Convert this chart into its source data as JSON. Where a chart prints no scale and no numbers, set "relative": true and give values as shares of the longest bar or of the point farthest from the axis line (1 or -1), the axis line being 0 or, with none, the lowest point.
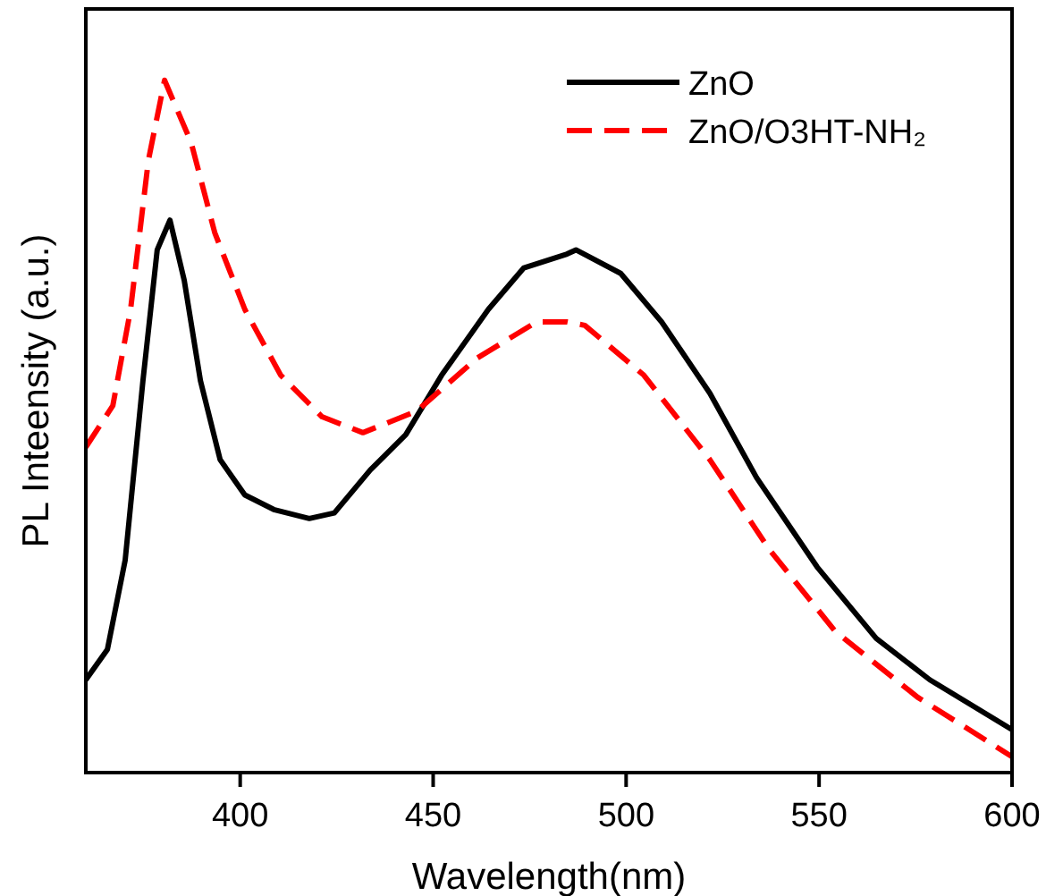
{
  "chart_data": {
    "type": "line",
    "xlabel": "Wavelength(nm)",
    "ylabel": "PL Inteensity (a.u.)",
    "relative": true,
    "xlim": [
      360,
      600
    ],
    "xticks": [
      400,
      450,
      500,
      550,
      600
    ],
    "legend": "top right",
    "marker": "none",
    "series": [
      {
        "name": "ZnO",
        "color": "#000000",
        "line_style": "solid",
        "x": [
          360,
          365.6,
          370.2,
          374.8,
          378.5,
          381.8,
          385.5,
          389.7,
          394.8,
          401.2,
          408.7,
          417.9,
          424.4,
          433.7,
          442.9,
          452.2,
          464.3,
          473.5,
          484.7,
          487,
          498.6,
          509.2,
          521.7,
          533.8,
          549.5,
          564.8,
          578.7,
          600
        ],
        "values": [
          0.134,
          0.178,
          0.307,
          0.566,
          0.755,
          0.798,
          0.711,
          0.566,
          0.452,
          0.401,
          0.38,
          0.367,
          0.375,
          0.437,
          0.488,
          0.574,
          0.669,
          0.729,
          0.749,
          0.755,
          0.721,
          0.651,
          0.548,
          0.426,
          0.297,
          0.194,
          0.134,
          0.062
        ]
      },
      {
        "name": "ZnO/O3HT-NH₂",
        "color": "#ff0000",
        "line_style": "dashed",
        "x": [
          360,
          367,
          371.6,
          376.2,
          380.4,
          387.3,
          393.4,
          401.2,
          410.5,
          421.2,
          431.8,
          445.7,
          461.5,
          476.8,
          484.7,
          489.3,
          504.6,
          521.7,
          537,
          554.2,
          575.5,
          600
        ],
        "values": [
          0.47,
          0.53,
          0.669,
          0.884,
          1,
          0.91,
          0.78,
          0.669,
          0.574,
          0.514,
          0.491,
          0.522,
          0.599,
          0.651,
          0.651,
          0.646,
          0.574,
          0.452,
          0.323,
          0.204,
          0.109,
          0.023
        ]
      }
    ]
  }
}
